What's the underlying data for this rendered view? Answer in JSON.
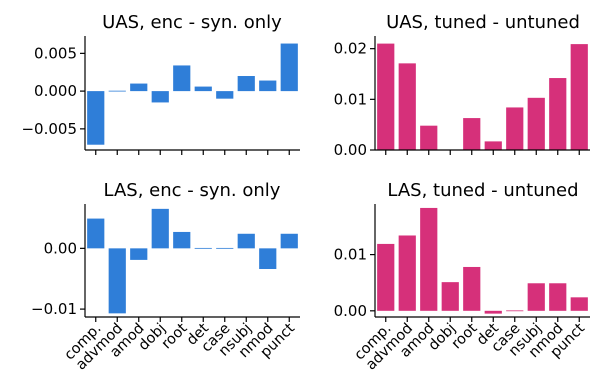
{
  "colors": {
    "blue": "#2f7ed8",
    "pink": "#d6307a"
  },
  "chart_data": [
    {
      "type": "bar",
      "title": "UAS, enc - syn. only",
      "categories": [
        "comp.",
        "advmod",
        "amod",
        "dobj",
        "root",
        "det",
        "case",
        "nsubj",
        "nmod",
        "punct"
      ],
      "values": [
        -0.0071,
        0.0001,
        0.001,
        -0.0015,
        0.0034,
        0.0006,
        -0.001,
        0.002,
        0.0014,
        0.0063
      ],
      "ylim": [
        -0.0078,
        0.0073
      ],
      "yticks": [
        -0.005,
        0.0,
        0.005
      ],
      "ytick_labels": [
        "−0.005",
        "0.000",
        "0.005"
      ],
      "color": "#2f7ed8",
      "show_xticklabels": false
    },
    {
      "type": "bar",
      "title": "UAS, tuned - untuned",
      "categories": [
        "comp.",
        "advmod",
        "amod",
        "dobj",
        "root",
        "det",
        "case",
        "nsubj",
        "nmod",
        "punct"
      ],
      "values": [
        0.021,
        0.0171,
        0.0048,
        0.0,
        0.0063,
        0.0017,
        0.0084,
        0.0103,
        0.0142,
        0.0209
      ],
      "ylim": [
        0,
        0.0225
      ],
      "yticks": [
        0.0,
        0.01,
        0.02
      ],
      "ytick_labels": [
        "0.00",
        "0.01",
        "0.02"
      ],
      "color": "#d6307a",
      "show_xticklabels": false
    },
    {
      "type": "bar",
      "title": "LAS, enc - syn. only",
      "categories": [
        "comp.",
        "advmod",
        "amod",
        "dobj",
        "root",
        "det",
        "case",
        "nsubj",
        "nmod",
        "punct"
      ],
      "values": [
        0.0049,
        -0.0107,
        -0.0019,
        0.0065,
        0.0027,
        0.0001,
        0.0001,
        0.0024,
        -0.0034,
        0.0024
      ],
      "ylim": [
        -0.0113,
        0.0073
      ],
      "yticks": [
        -0.01,
        0.0
      ],
      "ytick_labels": [
        "−0.01",
        "0.00"
      ],
      "color": "#2f7ed8",
      "show_xticklabels": true
    },
    {
      "type": "bar",
      "title": "LAS, tuned - untuned",
      "categories": [
        "comp.",
        "advmod",
        "amod",
        "dobj",
        "root",
        "det",
        "case",
        "nsubj",
        "nmod",
        "punct"
      ],
      "values": [
        0.0119,
        0.0134,
        0.0183,
        0.0051,
        0.0078,
        -0.0005,
        0.0001,
        0.0049,
        0.0049,
        0.0024
      ],
      "ylim": [
        -0.0011,
        0.019
      ],
      "yticks": [
        0.0,
        0.01
      ],
      "ytick_labels": [
        "0.00",
        "0.01"
      ],
      "color": "#d6307a",
      "show_xticklabels": true
    }
  ]
}
